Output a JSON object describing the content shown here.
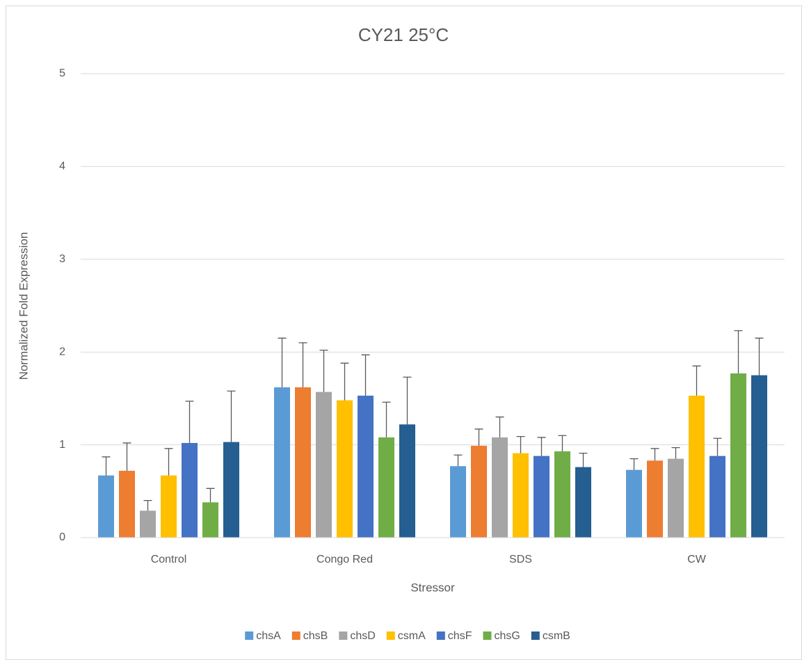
{
  "chart_data": {
    "type": "bar",
    "title": "CY21 25°C",
    "x_label": "Stressor",
    "y_label": "Normalized Fold Expression",
    "categories": [
      "Control",
      "Congo Red",
      "SDS",
      "CW"
    ],
    "ylim": [
      0,
      5
    ],
    "yticks": [
      0,
      1,
      2,
      3,
      4,
      5
    ],
    "grid": true,
    "legend": "bottom",
    "series": [
      {
        "name": "chsA",
        "color": "#5b9bd5",
        "values": [
          0.67,
          1.62,
          0.77,
          0.73
        ],
        "errors": [
          0.2,
          0.53,
          0.12,
          0.12
        ]
      },
      {
        "name": "chsB",
        "color": "#ed7d31",
        "values": [
          0.72,
          1.62,
          0.99,
          0.83
        ],
        "errors": [
          0.3,
          0.48,
          0.18,
          0.13
        ]
      },
      {
        "name": "chsD",
        "color": "#a5a5a5",
        "values": [
          0.29,
          1.57,
          1.08,
          0.85
        ],
        "errors": [
          0.11,
          0.45,
          0.22,
          0.12
        ]
      },
      {
        "name": "csmA",
        "color": "#ffc000",
        "values": [
          0.67,
          1.48,
          0.91,
          1.53
        ],
        "errors": [
          0.29,
          0.4,
          0.18,
          0.32
        ]
      },
      {
        "name": "chsF",
        "color": "#4472c4",
        "values": [
          1.02,
          1.53,
          0.88,
          0.88
        ],
        "errors": [
          0.45,
          0.44,
          0.2,
          0.19
        ]
      },
      {
        "name": "chsG",
        "color": "#70ad47",
        "values": [
          0.38,
          1.08,
          0.93,
          1.77
        ],
        "errors": [
          0.15,
          0.38,
          0.17,
          0.46
        ]
      },
      {
        "name": "csmB",
        "color": "#255e91",
        "values": [
          1.03,
          1.22,
          0.76,
          1.75
        ],
        "errors": [
          0.55,
          0.51,
          0.15,
          0.4
        ]
      }
    ]
  }
}
